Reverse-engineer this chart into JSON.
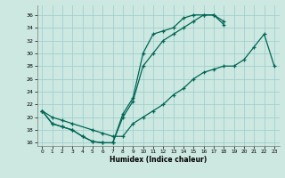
{
  "xlabel": "Humidex (Indice chaleur)",
  "bg_color": "#cce8e0",
  "grid_color": "#99cccc",
  "line_color": "#006655",
  "xlim": [
    -0.5,
    23.5
  ],
  "ylim": [
    15.5,
    37.5
  ],
  "xticks": [
    0,
    1,
    2,
    3,
    4,
    5,
    6,
    7,
    8,
    9,
    10,
    11,
    12,
    13,
    14,
    15,
    16,
    17,
    18,
    19,
    20,
    21,
    22,
    23
  ],
  "yticks": [
    16,
    18,
    20,
    22,
    24,
    26,
    28,
    30,
    32,
    34,
    36
  ],
  "series1_x": [
    0,
    1,
    2,
    3,
    4,
    5,
    6,
    7,
    8,
    9,
    10,
    11,
    12,
    13,
    14,
    15,
    16,
    17,
    18
  ],
  "series1_y": [
    21,
    19,
    18.5,
    18,
    17,
    16.2,
    16,
    16,
    20.5,
    23,
    30,
    33,
    33.5,
    34,
    35.5,
    36,
    36,
    36,
    34.5
  ],
  "series2_x": [
    0,
    1,
    2,
    3,
    4,
    5,
    6,
    7,
    8,
    9,
    10,
    11,
    12,
    13,
    14,
    15,
    16,
    17,
    18
  ],
  "series2_y": [
    21,
    19,
    18.5,
    18,
    17,
    16.2,
    16,
    16,
    20,
    22.5,
    28,
    30,
    32,
    33,
    34,
    35,
    36,
    36,
    35
  ],
  "series3_x": [
    0,
    1,
    2,
    3,
    5,
    6,
    7,
    8,
    9,
    10,
    11,
    12,
    13,
    14,
    15,
    16,
    17,
    18,
    19,
    20,
    21,
    22,
    23
  ],
  "series3_y": [
    21,
    20,
    19.5,
    19,
    18,
    17.5,
    17,
    17,
    19,
    20,
    21,
    22,
    23.5,
    24.5,
    26,
    27,
    27.5,
    28,
    28,
    29,
    31,
    33,
    28
  ]
}
